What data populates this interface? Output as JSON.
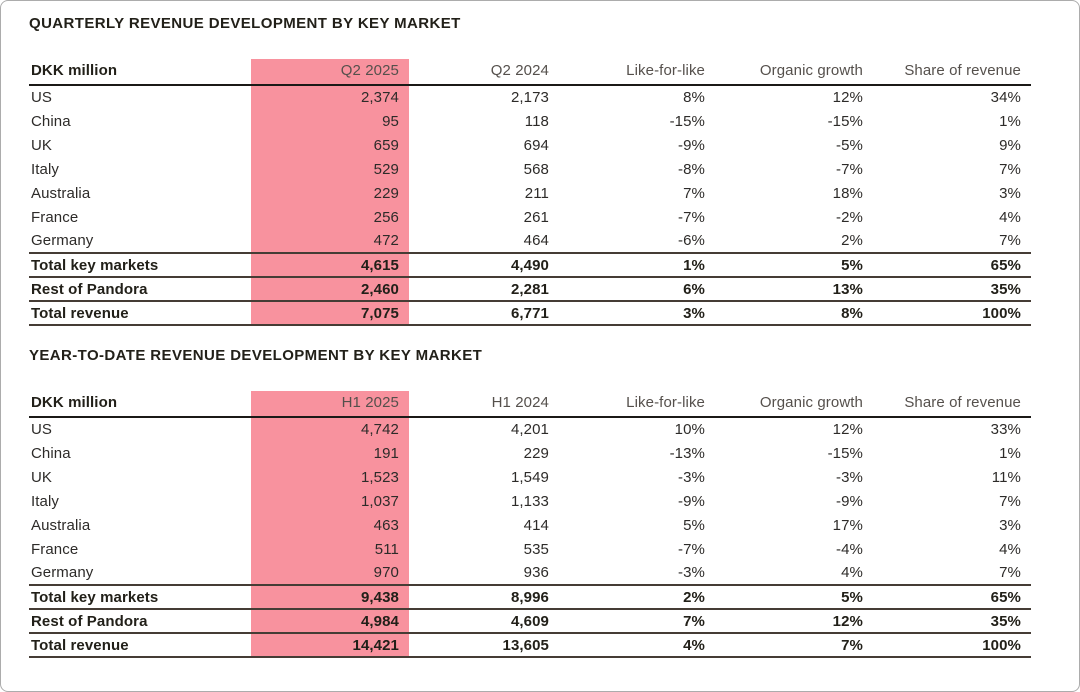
{
  "page": {
    "background": "#ffffff",
    "border_color": "#acacac"
  },
  "colors": {
    "highlight_pink": "#f8929e",
    "text_primary": "#2d2b29",
    "text_strong": "#222019",
    "text_header": "#55504c",
    "rule_dark": "#1b1917",
    "rule_total": "#453c35"
  },
  "tables": [
    {
      "title": "QUARTERLY REVENUE DEVELOPMENT BY KEY MARKET",
      "unit_label": "DKK million",
      "highlighted_column": "Q2 2025",
      "columns": [
        "DKK million",
        "Q2 2025",
        "Q2 2024",
        "Like-for-like",
        "Organic growth",
        "Share of revenue"
      ],
      "rows": [
        {
          "cells": [
            "US",
            "2,374",
            "2,173",
            "8%",
            "12%",
            "34%"
          ],
          "emphasis": false
        },
        {
          "cells": [
            "China",
            "95",
            "118",
            "-15%",
            "-15%",
            "1%"
          ],
          "emphasis": false
        },
        {
          "cells": [
            "UK",
            "659",
            "694",
            "-9%",
            "-5%",
            "9%"
          ],
          "emphasis": false
        },
        {
          "cells": [
            "Italy",
            "529",
            "568",
            "-8%",
            "-7%",
            "7%"
          ],
          "emphasis": false
        },
        {
          "cells": [
            "Australia",
            "229",
            "211",
            "7%",
            "18%",
            "3%"
          ],
          "emphasis": false
        },
        {
          "cells": [
            "France",
            "256",
            "261",
            "-7%",
            "-2%",
            "4%"
          ],
          "emphasis": false
        },
        {
          "cells": [
            "Germany",
            "472",
            "464",
            "-6%",
            "2%",
            "7%"
          ],
          "emphasis": false
        },
        {
          "cells": [
            "Total key markets",
            "4,615",
            "4,490",
            "1%",
            "5%",
            "65%"
          ],
          "emphasis": true
        },
        {
          "cells": [
            "Rest of Pandora",
            "2,460",
            "2,281",
            "6%",
            "13%",
            "35%"
          ],
          "emphasis": true
        },
        {
          "cells": [
            "Total revenue",
            "7,075",
            "6,771",
            "3%",
            "8%",
            "100%"
          ],
          "emphasis": true
        }
      ]
    },
    {
      "title": "YEAR-TO-DATE REVENUE DEVELOPMENT BY KEY MARKET",
      "unit_label": "DKK million",
      "highlighted_column": "H1 2025",
      "columns": [
        "DKK million",
        "H1 2025",
        "H1 2024",
        "Like-for-like",
        "Organic growth",
        "Share of revenue"
      ],
      "rows": [
        {
          "cells": [
            "US",
            "4,742",
            "4,201",
            "10%",
            "12%",
            "33%"
          ],
          "emphasis": false
        },
        {
          "cells": [
            "China",
            "191",
            "229",
            "-13%",
            "-15%",
            "1%"
          ],
          "emphasis": false
        },
        {
          "cells": [
            "UK",
            "1,523",
            "1,549",
            "-3%",
            "-3%",
            "11%"
          ],
          "emphasis": false
        },
        {
          "cells": [
            "Italy",
            "1,037",
            "1,133",
            "-9%",
            "-9%",
            "7%"
          ],
          "emphasis": false
        },
        {
          "cells": [
            "Australia",
            "463",
            "414",
            "5%",
            "17%",
            "3%"
          ],
          "emphasis": false
        },
        {
          "cells": [
            "France",
            "511",
            "535",
            "-7%",
            "-4%",
            "4%"
          ],
          "emphasis": false
        },
        {
          "cells": [
            "Germany",
            "970",
            "936",
            "-3%",
            "4%",
            "7%"
          ],
          "emphasis": false
        },
        {
          "cells": [
            "Total key markets",
            "9,438",
            "8,996",
            "2%",
            "5%",
            "65%"
          ],
          "emphasis": true
        },
        {
          "cells": [
            "Rest of Pandora",
            "4,984",
            "4,609",
            "7%",
            "12%",
            "35%"
          ],
          "emphasis": true
        },
        {
          "cells": [
            "Total revenue",
            "14,421",
            "13,605",
            "4%",
            "7%",
            "100%"
          ],
          "emphasis": true
        }
      ]
    }
  ]
}
